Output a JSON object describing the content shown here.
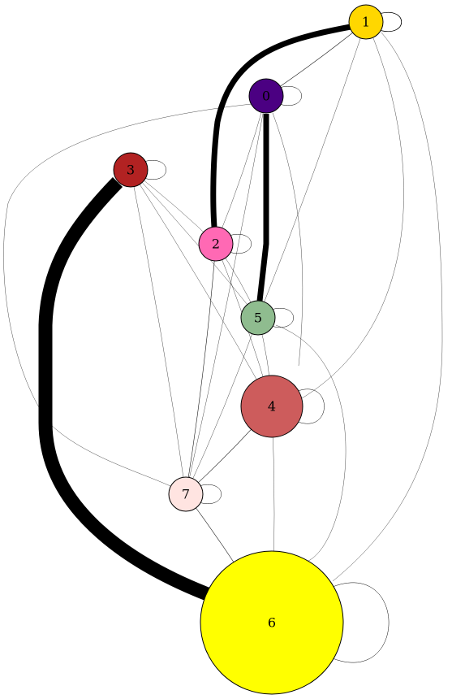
{
  "graph": {
    "nodes": [
      {
        "id": "node-0",
        "label": "0",
        "color": "#4b0082"
      },
      {
        "id": "node-1",
        "label": "1",
        "color": "#ffd700"
      },
      {
        "id": "node-2",
        "label": "2",
        "color": "#ff69b4"
      },
      {
        "id": "node-3",
        "label": "3",
        "color": "#b22222"
      },
      {
        "id": "node-4",
        "label": "4",
        "color": "#cd5c5c"
      },
      {
        "id": "node-5",
        "label": "5",
        "color": "#8fbc8f"
      },
      {
        "id": "node-6",
        "label": "6",
        "color": "#ffff00"
      },
      {
        "id": "node-7",
        "label": "7",
        "color": "#ffe4e1"
      }
    ],
    "edges": [
      {
        "from": "3",
        "to": "6",
        "weight": "heavy"
      },
      {
        "from": "1",
        "to": "2",
        "weight": "strong"
      },
      {
        "from": "0",
        "to": "5",
        "weight": "strong"
      },
      {
        "from": "1",
        "to": "0",
        "weight": "thin"
      },
      {
        "from": "7",
        "to": "6",
        "weight": "thin"
      },
      {
        "from": "4",
        "to": "7",
        "weight": "thin"
      },
      {
        "from": "2",
        "to": "7",
        "weight": "thin"
      },
      {
        "from": "3",
        "to": "2",
        "weight": "faint"
      },
      {
        "from": "3",
        "to": "4",
        "weight": "faint"
      },
      {
        "from": "3",
        "to": "5",
        "weight": "faint"
      },
      {
        "from": "3",
        "to": "7",
        "weight": "faint"
      },
      {
        "from": "0",
        "to": "3",
        "weight": "faint"
      },
      {
        "from": "0",
        "to": "2",
        "weight": "faint"
      },
      {
        "from": "0",
        "to": "4",
        "weight": "faint"
      },
      {
        "from": "1",
        "to": "4",
        "weight": "faint"
      },
      {
        "from": "1",
        "to": "5",
        "weight": "faint"
      },
      {
        "from": "1",
        "to": "6",
        "weight": "faint"
      },
      {
        "from": "2",
        "to": "5",
        "weight": "faint"
      },
      {
        "from": "2",
        "to": "4",
        "weight": "faint"
      },
      {
        "from": "5",
        "to": "7",
        "weight": "faint"
      },
      {
        "from": "5",
        "to": "4",
        "weight": "faint"
      },
      {
        "from": "5",
        "to": "6",
        "weight": "faint"
      },
      {
        "from": "4",
        "to": "6",
        "weight": "faint"
      },
      {
        "from": "0",
        "to": "7",
        "weight": "faint"
      }
    ],
    "self_loops": [
      "0",
      "1",
      "2",
      "3",
      "4",
      "5",
      "6",
      "7"
    ]
  }
}
